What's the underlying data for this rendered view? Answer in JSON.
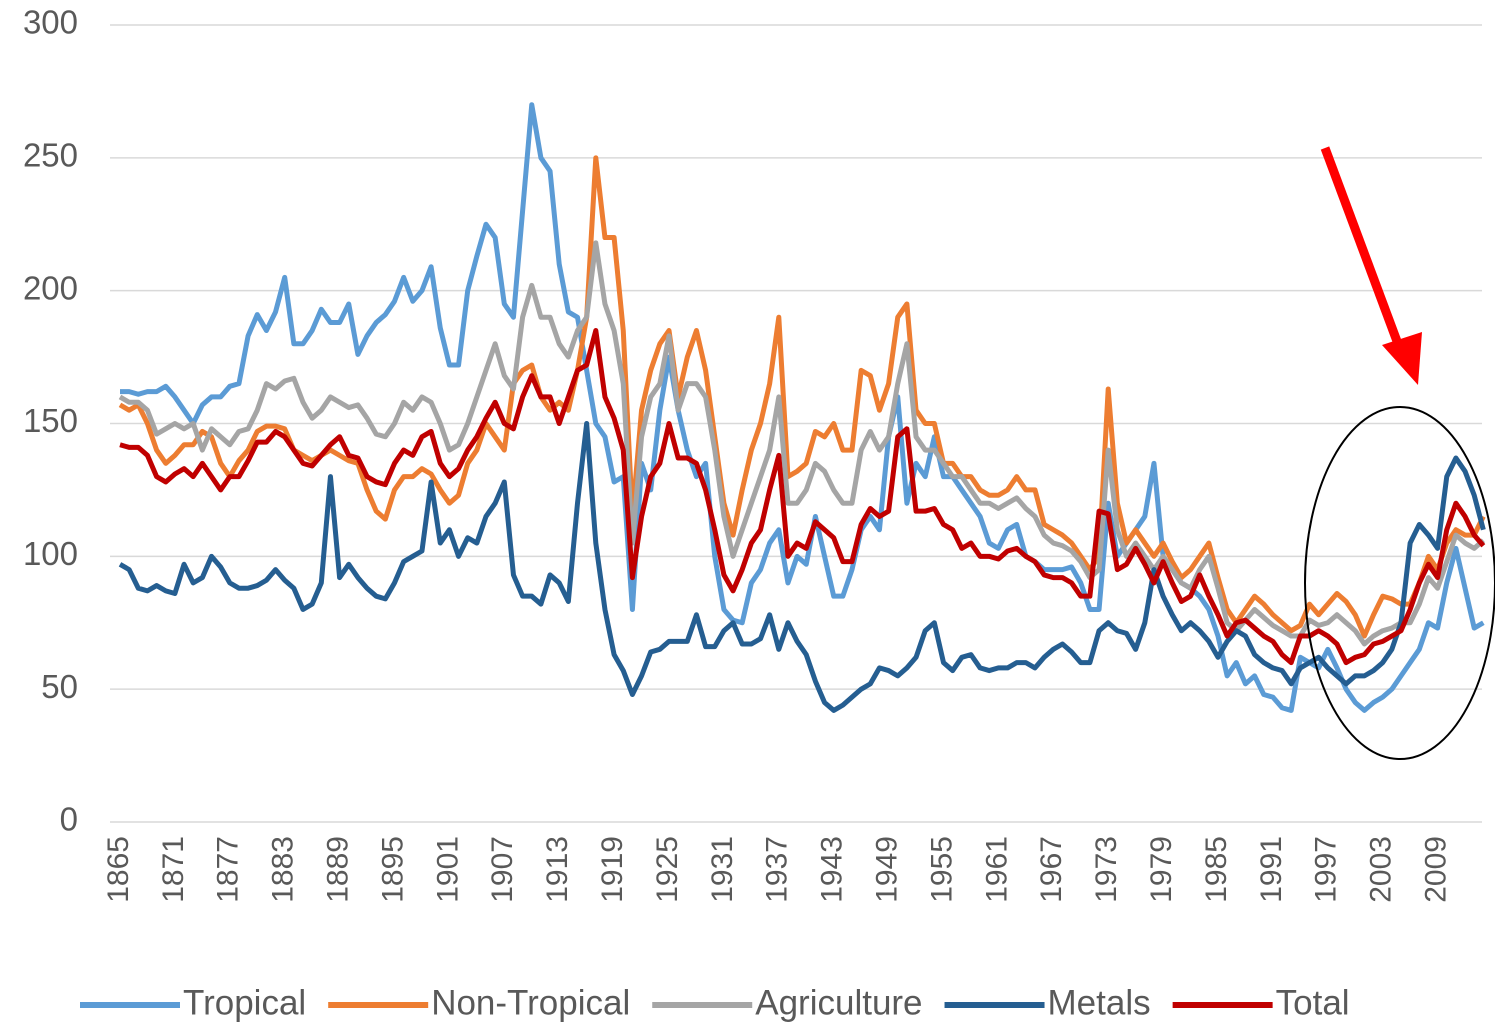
{
  "chart_data": {
    "type": "line",
    "categories": [
      "1865",
      null,
      null,
      null,
      null,
      null,
      "1871",
      null,
      null,
      null,
      null,
      null,
      "1877",
      null,
      null,
      null,
      null,
      null,
      "1883",
      null,
      null,
      null,
      null,
      null,
      "1889",
      null,
      null,
      null,
      null,
      null,
      "1895",
      null,
      null,
      null,
      null,
      null,
      "1901",
      null,
      null,
      null,
      null,
      null,
      "1907",
      null,
      null,
      null,
      null,
      null,
      "1913",
      null,
      null,
      null,
      null,
      null,
      "1919",
      null,
      null,
      null,
      null,
      null,
      "1925",
      null,
      null,
      null,
      null,
      null,
      "1931",
      null,
      null,
      null,
      null,
      null,
      "1937",
      null,
      null,
      null,
      null,
      null,
      "1943",
      null,
      null,
      null,
      null,
      null,
      "1949",
      null,
      null,
      null,
      null,
      null,
      "1955",
      null,
      null,
      null,
      null,
      null,
      "1961",
      null,
      null,
      null,
      null,
      null,
      "1967",
      null,
      null,
      null,
      null,
      null,
      "1973",
      null,
      null,
      null,
      null,
      null,
      "1979",
      null,
      null,
      null,
      null,
      null,
      "1985",
      null,
      null,
      null,
      null,
      null,
      "1991",
      null,
      null,
      null,
      null,
      null,
      "1997",
      null,
      null,
      null,
      null,
      null,
      "2003",
      null,
      null,
      null,
      null,
      null,
      "2009",
      null,
      null,
      null,
      null,
      null
    ],
    "series": [
      {
        "name": "Tropical",
        "color": "#5b9bd5",
        "values": [
          162,
          162,
          161,
          162,
          162,
          164,
          160,
          155,
          150,
          157,
          160,
          160,
          164,
          165,
          183,
          191,
          185,
          192,
          205,
          180,
          180,
          185,
          193,
          188,
          188,
          195,
          176,
          183,
          188,
          191,
          196,
          205,
          196,
          200,
          209,
          186,
          172,
          172,
          200,
          213,
          225,
          220,
          195,
          190,
          230,
          270,
          250,
          245,
          210,
          192,
          190,
          170,
          150,
          145,
          128,
          130,
          80,
          135,
          125,
          155,
          175,
          155,
          140,
          130,
          135,
          100,
          80,
          76,
          75,
          90,
          95,
          105,
          110,
          90,
          100,
          97,
          115,
          100,
          85,
          85,
          95,
          110,
          115,
          110,
          145,
          160,
          120,
          135,
          130,
          145,
          130,
          130,
          125,
          120,
          115,
          105,
          103,
          110,
          112,
          100,
          98,
          95,
          95,
          95,
          96,
          90,
          80,
          80,
          120,
          100,
          105,
          110,
          115,
          135,
          100,
          95,
          90,
          88,
          85,
          80,
          70,
          55,
          60,
          52,
          55,
          48,
          47,
          43,
          42,
          62,
          60,
          58,
          65,
          58,
          50,
          45,
          42,
          45,
          47,
          50,
          55,
          60,
          65,
          75,
          73,
          90,
          103,
          88,
          73,
          75
        ]
      },
      {
        "name": "Non-Tropical",
        "color": "#ed7d31",
        "values": [
          157,
          155,
          157,
          150,
          140,
          135,
          138,
          142,
          142,
          147,
          145,
          135,
          130,
          136,
          140,
          147,
          149,
          149,
          148,
          140,
          138,
          136,
          138,
          140,
          138,
          136,
          135,
          125,
          117,
          114,
          125,
          130,
          130,
          133,
          131,
          125,
          120,
          123,
          135,
          140,
          150,
          145,
          140,
          165,
          170,
          172,
          160,
          155,
          158,
          155,
          170,
          190,
          250,
          220,
          220,
          185,
          115,
          155,
          170,
          180,
          185,
          160,
          175,
          185,
          170,
          145,
          120,
          108,
          125,
          140,
          150,
          165,
          190,
          130,
          132,
          135,
          147,
          145,
          150,
          140,
          140,
          170,
          168,
          155,
          165,
          190,
          195,
          155,
          150,
          150,
          135,
          135,
          130,
          130,
          125,
          123,
          123,
          125,
          130,
          125,
          125,
          112,
          110,
          108,
          105,
          100,
          95,
          100,
          163,
          120,
          105,
          110,
          105,
          100,
          105,
          98,
          92,
          95,
          100,
          105,
          92,
          80,
          75,
          80,
          85,
          82,
          78,
          75,
          72,
          74,
          82,
          78,
          82,
          86,
          83,
          78,
          70,
          78,
          85,
          84,
          82,
          82,
          90,
          100,
          95,
          105,
          110,
          108,
          108,
          115
        ]
      },
      {
        "name": "Agriculture",
        "color": "#a5a5a5",
        "values": [
          160,
          158,
          158,
          155,
          146,
          148,
          150,
          148,
          150,
          140,
          148,
          145,
          142,
          147,
          148,
          155,
          165,
          163,
          166,
          167,
          158,
          152,
          155,
          160,
          158,
          156,
          157,
          152,
          146,
          145,
          150,
          158,
          155,
          160,
          158,
          150,
          140,
          142,
          150,
          160,
          170,
          180,
          168,
          163,
          190,
          202,
          190,
          190,
          180,
          175,
          185,
          190,
          218,
          195,
          185,
          165,
          105,
          145,
          160,
          165,
          183,
          155,
          165,
          165,
          160,
          140,
          115,
          100,
          110,
          120,
          130,
          140,
          160,
          120,
          120,
          125,
          135,
          132,
          125,
          120,
          120,
          140,
          147,
          140,
          145,
          165,
          180,
          145,
          140,
          140,
          135,
          130,
          130,
          125,
          120,
          120,
          118,
          120,
          122,
          118,
          115,
          108,
          105,
          104,
          102,
          98,
          92,
          95,
          140,
          110,
          100,
          105,
          100,
          95,
          100,
          95,
          90,
          88,
          95,
          100,
          88,
          75,
          72,
          76,
          80,
          77,
          74,
          72,
          70,
          70,
          76,
          74,
          75,
          78,
          75,
          72,
          67,
          70,
          72,
          73,
          75,
          75,
          82,
          92,
          88,
          98,
          108,
          105,
          103,
          106
        ]
      },
      {
        "name": "Metals",
        "color": "#255e91",
        "values": [
          97,
          95,
          88,
          87,
          89,
          87,
          86,
          97,
          90,
          92,
          100,
          96,
          90,
          88,
          88,
          89,
          91,
          95,
          91,
          88,
          80,
          82,
          90,
          130,
          92,
          97,
          92,
          88,
          85,
          84,
          90,
          98,
          100,
          102,
          128,
          105,
          110,
          100,
          107,
          105,
          115,
          120,
          128,
          93,
          85,
          85,
          82,
          93,
          90,
          83,
          120,
          150,
          105,
          80,
          63,
          57,
          48,
          55,
          64,
          65,
          68,
          68,
          68,
          78,
          66,
          66,
          72,
          75,
          67,
          67,
          69,
          78,
          65,
          75,
          68,
          63,
          53,
          45,
          42,
          44,
          47,
          50,
          52,
          58,
          57,
          55,
          58,
          62,
          72,
          75,
          60,
          57,
          62,
          63,
          58,
          57,
          58,
          58,
          60,
          60,
          58,
          62,
          65,
          67,
          64,
          60,
          60,
          72,
          75,
          72,
          71,
          65,
          75,
          95,
          85,
          78,
          72,
          75,
          72,
          68,
          62,
          68,
          72,
          70,
          63,
          60,
          58,
          57,
          52,
          58,
          60,
          62,
          58,
          55,
          52,
          55,
          55,
          57,
          60,
          65,
          75,
          105,
          112,
          108,
          103,
          130,
          137,
          132,
          123,
          110
        ]
      },
      {
        "name": "Total",
        "color": "#c00000",
        "values": [
          142,
          141,
          141,
          138,
          130,
          128,
          131,
          133,
          130,
          135,
          130,
          125,
          130,
          130,
          136,
          143,
          143,
          147,
          145,
          140,
          135,
          134,
          138,
          142,
          145,
          138,
          137,
          130,
          128,
          127,
          135,
          140,
          138,
          145,
          147,
          135,
          130,
          133,
          140,
          145,
          152,
          158,
          150,
          148,
          160,
          168,
          160,
          160,
          150,
          160,
          170,
          172,
          185,
          160,
          152,
          140,
          92,
          115,
          130,
          135,
          150,
          137,
          137,
          135,
          125,
          110,
          93,
          87,
          95,
          105,
          110,
          125,
          138,
          100,
          105,
          103,
          113,
          110,
          107,
          98,
          98,
          112,
          118,
          115,
          117,
          145,
          148,
          117,
          117,
          118,
          112,
          110,
          103,
          105,
          100,
          100,
          99,
          102,
          103,
          100,
          98,
          93,
          92,
          92,
          90,
          85,
          85,
          117,
          116,
          95,
          97,
          103,
          97,
          90,
          98,
          90,
          83,
          85,
          93,
          85,
          78,
          70,
          75,
          76,
          73,
          70,
          68,
          63,
          60,
          70,
          70,
          72,
          70,
          67,
          60,
          62,
          63,
          67,
          68,
          70,
          72,
          80,
          90,
          97,
          92,
          110,
          120,
          115,
          108,
          104
        ]
      }
    ],
    "ylim": [
      0,
      300
    ],
    "yticks": [
      0,
      50,
      100,
      150,
      200,
      250,
      300
    ],
    "grid": true,
    "legend": "bottom"
  }
}
